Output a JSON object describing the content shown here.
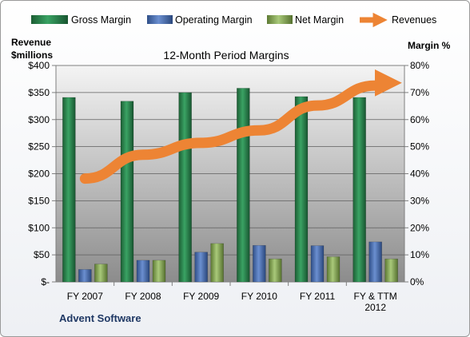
{
  "chart_data": {
    "type": "bar",
    "title": "12-Month Period Margins",
    "footer": "Advent Software",
    "categories": [
      [
        "FY 2007"
      ],
      [
        "FY 2008"
      ],
      [
        "FY 2009"
      ],
      [
        "FY 2010"
      ],
      [
        "FY 2011"
      ],
      [
        "FY & TTM",
        "2012"
      ]
    ],
    "y_left": {
      "label_lines": [
        "Revenue",
        "$millions"
      ],
      "range": [
        0,
        400
      ],
      "ticks": [
        "$-",
        "$50",
        "$100",
        "$150",
        "$200",
        "$250",
        "$300",
        "$350",
        "$400"
      ]
    },
    "y_right": {
      "label": "Margin %",
      "range": [
        0,
        80
      ],
      "ticks": [
        "0%",
        "10%",
        "20%",
        "30%",
        "40%",
        "50%",
        "60%",
        "70%",
        "80%"
      ]
    },
    "legend": {
      "placement": "top",
      "items": [
        "Gross Margin",
        "Operating Margin",
        "Net Margin",
        "Revenues"
      ]
    },
    "series": [
      {
        "name": "Gross Margin",
        "axis": "right",
        "type": "bar",
        "color": "#217a45",
        "values": [
          68.2,
          66.8,
          70.0,
          71.6,
          68.5,
          68.2
        ]
      },
      {
        "name": "Operating Margin",
        "axis": "right",
        "type": "bar",
        "color": "#4a6fb3",
        "values": [
          4.6,
          8.0,
          11.0,
          13.5,
          13.4,
          14.8
        ]
      },
      {
        "name": "Net Margin",
        "axis": "right",
        "type": "bar",
        "color": "#8db05a",
        "values": [
          6.6,
          8.0,
          14.2,
          8.5,
          9.3,
          8.5
        ]
      },
      {
        "name": "Revenues",
        "axis": "left",
        "type": "line",
        "color": "#ed8434",
        "values": [
          191,
          235,
          257,
          280,
          326,
          363
        ]
      }
    ],
    "grid": true
  }
}
